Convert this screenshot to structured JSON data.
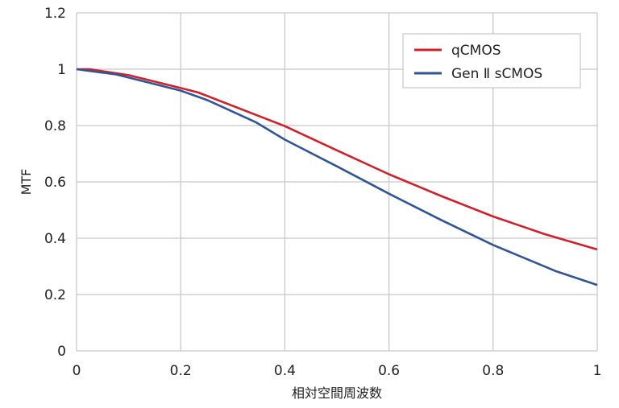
{
  "chart_data": {
    "type": "line",
    "title": "",
    "xlabel": "相対空間周波数",
    "ylabel": "MTF",
    "xlim": [
      0,
      1
    ],
    "ylim": [
      0,
      1.2
    ],
    "xticks": [
      "0",
      "0.2",
      "0.4",
      "0.6",
      "0.8",
      "1"
    ],
    "yticks": [
      "0",
      "0.2",
      "0.4",
      "0.6",
      "0.8",
      "1",
      "1.2"
    ],
    "grid": true,
    "legend_position": "top-right",
    "series": [
      {
        "name": "qCMOS",
        "color": "#d0202a",
        "x": [
          0,
          0.025,
          0.1,
          0.2,
          0.234,
          0.4,
          0.5,
          0.6,
          0.7,
          0.8,
          0.9,
          1.0
        ],
        "y": [
          1.0,
          1.0,
          0.979,
          0.933,
          0.917,
          0.798,
          0.712,
          0.627,
          0.55,
          0.477,
          0.414,
          0.36
        ]
      },
      {
        "name": "Gen Ⅱ sCMOS",
        "color": "#2f5597",
        "x": [
          0,
          0.077,
          0.2,
          0.253,
          0.344,
          0.4,
          0.5,
          0.6,
          0.7,
          0.8,
          0.919,
          1.0
        ],
        "y": [
          1.0,
          0.981,
          0.924,
          0.889,
          0.812,
          0.75,
          0.655,
          0.558,
          0.465,
          0.376,
          0.284,
          0.234
        ]
      }
    ]
  }
}
